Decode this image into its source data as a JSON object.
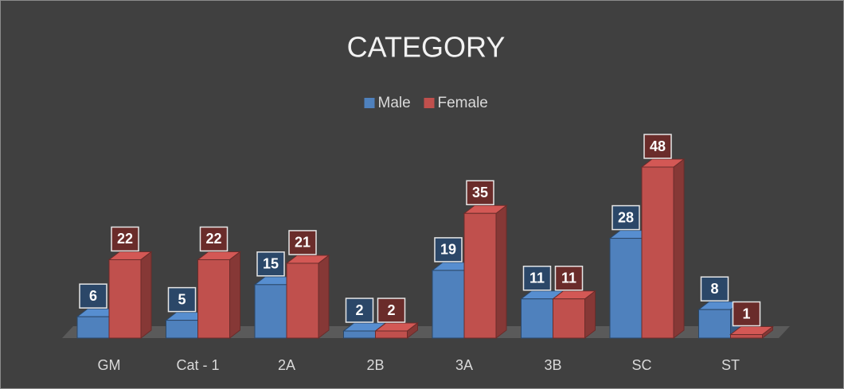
{
  "chart_data": {
    "type": "bar3d",
    "title": "CATEGORY",
    "categories": [
      "GM",
      "Cat - 1",
      "2A",
      "2B",
      "3A",
      "3B",
      "SC",
      "ST"
    ],
    "series": [
      {
        "name": "Male",
        "color": "#4f81bd",
        "values": [
          6,
          5,
          15,
          2,
          19,
          11,
          28,
          8
        ]
      },
      {
        "name": "Female",
        "color": "#c0504d",
        "values": [
          22,
          22,
          21,
          2,
          35,
          11,
          48,
          1
        ]
      }
    ],
    "legend": "top",
    "data_labels": true
  }
}
